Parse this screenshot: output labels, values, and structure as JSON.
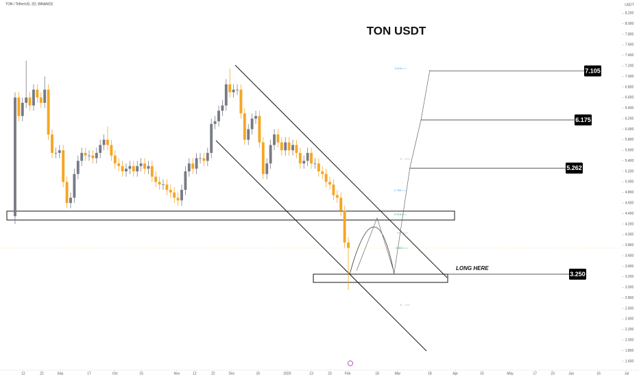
{
  "chart_data": {
    "type": "candlestick",
    "header": "TON / TetherUS, 2D, BINANCE",
    "title": "TON USDT",
    "y_axis_label": "USDT",
    "up_color": "#787b86",
    "down_color": "#f5a623",
    "open": [
      4.35,
      6.6,
      6.25,
      6.5,
      6.6,
      6.45,
      6.75,
      6.6,
      6.5,
      6.75,
      5.9,
      5.55,
      5.55,
      5.6,
      5.0,
      4.6,
      4.7,
      5.15,
      5.4,
      5.55,
      5.5,
      5.5,
      5.45,
      5.55,
      5.7,
      5.8,
      5.7,
      5.5,
      5.35,
      5.3,
      5.2,
      5.25,
      5.3,
      5.2,
      5.3,
      5.35,
      5.25,
      5.3,
      5.1,
      5.0,
      4.95,
      4.95,
      4.85,
      4.8,
      4.7,
      4.65,
      4.85,
      5.2,
      5.35,
      5.25,
      5.45,
      5.45,
      5.4,
      5.55,
      6.1,
      6.15,
      6.35,
      6.45,
      6.85,
      6.7,
      6.75,
      6.75,
      6.3,
      5.8,
      6.0,
      6.2,
      6.25,
      5.75,
      5.15,
      5.35,
      5.7,
      5.9,
      5.75,
      5.6,
      5.75,
      5.6,
      5.7,
      5.55,
      5.35,
      5.4,
      5.55,
      5.35,
      5.35,
      5.2,
      5.15,
      5.0,
      4.95,
      4.75,
      4.7,
      4.45,
      3.85
    ],
    "high": [
      6.7,
      6.7,
      6.6,
      7.3,
      6.7,
      6.85,
      6.85,
      6.7,
      7.0,
      6.85,
      6.0,
      5.65,
      5.7,
      5.7,
      5.1,
      4.8,
      5.25,
      5.5,
      5.65,
      5.65,
      5.6,
      5.6,
      5.65,
      5.8,
      5.9,
      6.05,
      5.8,
      5.6,
      5.45,
      5.4,
      5.35,
      5.4,
      5.4,
      5.4,
      5.45,
      5.45,
      5.4,
      5.4,
      5.2,
      5.1,
      5.05,
      5.05,
      4.95,
      4.9,
      4.8,
      4.95,
      5.3,
      5.45,
      5.45,
      5.55,
      5.55,
      5.55,
      5.65,
      6.2,
      6.25,
      6.45,
      6.55,
      6.95,
      7.15,
      6.85,
      6.85,
      6.85,
      6.4,
      6.1,
      6.3,
      6.35,
      6.35,
      5.85,
      5.45,
      5.8,
      6.0,
      6.0,
      5.85,
      5.85,
      5.85,
      5.8,
      5.8,
      5.65,
      5.5,
      5.65,
      5.65,
      5.45,
      5.45,
      5.3,
      5.25,
      5.1,
      5.05,
      4.85,
      4.8,
      4.55,
      3.95
    ],
    "low": [
      4.2,
      6.15,
      6.15,
      6.4,
      6.35,
      6.35,
      6.5,
      6.4,
      6.4,
      5.8,
      5.45,
      5.45,
      5.45,
      4.9,
      4.5,
      4.5,
      4.6,
      5.05,
      5.3,
      5.4,
      5.4,
      5.35,
      5.35,
      5.45,
      5.6,
      5.6,
      5.4,
      5.25,
      5.2,
      5.1,
      5.1,
      5.15,
      5.1,
      5.1,
      5.2,
      5.15,
      5.15,
      5.0,
      4.9,
      4.85,
      4.85,
      4.75,
      4.7,
      4.6,
      4.55,
      4.55,
      4.75,
      5.1,
      5.15,
      5.15,
      5.35,
      5.3,
      5.3,
      5.45,
      6.0,
      6.05,
      6.25,
      6.35,
      6.6,
      6.6,
      6.65,
      6.2,
      5.7,
      5.7,
      5.9,
      6.1,
      5.65,
      5.05,
      5.05,
      5.25,
      5.6,
      5.65,
      5.5,
      5.5,
      5.5,
      5.5,
      5.45,
      5.25,
      5.25,
      5.3,
      5.25,
      5.25,
      5.1,
      5.05,
      4.9,
      4.85,
      4.65,
      4.6,
      4.35,
      3.75,
      2.95
    ],
    "close": [
      6.6,
      6.25,
      6.5,
      6.6,
      6.45,
      6.75,
      6.6,
      6.5,
      6.75,
      5.9,
      5.55,
      5.55,
      5.6,
      5.0,
      4.6,
      4.7,
      5.15,
      5.4,
      5.55,
      5.5,
      5.5,
      5.45,
      5.55,
      5.7,
      5.8,
      5.7,
      5.5,
      5.35,
      5.3,
      5.2,
      5.25,
      5.3,
      5.2,
      5.3,
      5.35,
      5.25,
      5.3,
      5.1,
      5.0,
      4.95,
      4.95,
      4.85,
      4.8,
      4.7,
      4.65,
      4.85,
      5.2,
      5.35,
      5.25,
      5.45,
      5.45,
      5.4,
      5.55,
      6.1,
      6.15,
      6.35,
      6.45,
      6.85,
      6.7,
      6.75,
      6.75,
      6.3,
      5.8,
      6.0,
      6.2,
      6.25,
      5.75,
      5.15,
      5.35,
      5.7,
      5.9,
      5.75,
      5.6,
      5.75,
      5.6,
      5.7,
      5.55,
      5.35,
      5.4,
      5.55,
      5.35,
      5.35,
      5.2,
      5.15,
      5.0,
      4.95,
      4.75,
      4.7,
      4.45,
      3.85,
      3.75
    ],
    "xlim": [
      -4.07,
      163.5
    ],
    "ylim": [
      1.43,
      8.45
    ],
    "xticks": [
      {
        "value": 2.2,
        "label": "12"
      },
      {
        "value": 7.2,
        "label": "22"
      },
      {
        "value": 12.2,
        "label": "Sep"
      },
      {
        "value": 20,
        "label": "17"
      },
      {
        "value": 27,
        "label": "Oct"
      },
      {
        "value": 34.1,
        "label": "15"
      },
      {
        "value": 43.7,
        "label": "Nov"
      },
      {
        "value": 48.5,
        "label": "12"
      },
      {
        "value": 53.5,
        "label": "22"
      },
      {
        "value": 58.5,
        "label": "Dec"
      },
      {
        "value": 65.6,
        "label": "16"
      },
      {
        "value": 73.5,
        "label": "2025"
      },
      {
        "value": 80,
        "label": "13"
      },
      {
        "value": 85,
        "label": "23"
      },
      {
        "value": 89.8,
        "label": "Feb"
      },
      {
        "value": 97.8,
        "label": "18"
      },
      {
        "value": 103.3,
        "label": "Mar"
      },
      {
        "value": 112,
        "label": "18"
      },
      {
        "value": 118.9,
        "label": "Apr"
      },
      {
        "value": 126.1,
        "label": "15"
      },
      {
        "value": 133.7,
        "label": "May"
      },
      {
        "value": 140.4,
        "label": "17"
      },
      {
        "value": 145.2,
        "label": "23"
      },
      {
        "value": 150.2,
        "label": "Jun"
      },
      {
        "value": 157.6,
        "label": "16"
      },
      {
        "value": 165.2,
        "label": "Jul"
      }
    ],
    "yticks": [
      {
        "value": 1.6,
        "label": "1.600"
      },
      {
        "value": 1.8,
        "label": "1.800"
      },
      {
        "value": 2.0,
        "label": "2.000"
      },
      {
        "value": 2.2,
        "label": "2.200"
      },
      {
        "value": 2.4,
        "label": "2.400"
      },
      {
        "value": 2.6,
        "label": "2.600"
      },
      {
        "value": 2.8,
        "label": "2.800"
      },
      {
        "value": 3.0,
        "label": "3.000"
      },
      {
        "value": 3.2,
        "label": "3.200"
      },
      {
        "value": 3.4,
        "label": "3.400"
      },
      {
        "value": 3.6,
        "label": "3.600"
      },
      {
        "value": 3.8,
        "label": "3.800"
      },
      {
        "value": 4.0,
        "label": "4.000"
      },
      {
        "value": 4.2,
        "label": "4.200"
      },
      {
        "value": 4.4,
        "label": "4.400"
      },
      {
        "value": 4.6,
        "label": "4.600"
      },
      {
        "value": 4.8,
        "label": "4.800"
      },
      {
        "value": 5.0,
        "label": "5.000"
      },
      {
        "value": 5.2,
        "label": "5.200"
      },
      {
        "value": 5.4,
        "label": "5.400"
      },
      {
        "value": 5.6,
        "label": "5.600"
      },
      {
        "value": 5.8,
        "label": "5.800"
      },
      {
        "value": 6.0,
        "label": "6.000"
      },
      {
        "value": 6.2,
        "label": "6.200"
      },
      {
        "value": 6.4,
        "label": "6.400"
      },
      {
        "value": 6.6,
        "label": "6.600"
      },
      {
        "value": 6.8,
        "label": "6.800"
      },
      {
        "value": 7.0,
        "label": "7.000"
      },
      {
        "value": 7.2,
        "label": "7.200"
      },
      {
        "value": 7.4,
        "label": "7.400"
      },
      {
        "value": 7.6,
        "label": "7.600"
      },
      {
        "value": 7.8,
        "label": "7.800"
      },
      {
        "value": 8.0,
        "label": "8.000"
      },
      {
        "value": 8.2,
        "label": "8.200"
      }
    ],
    "targets": [
      {
        "value": 7.105,
        "label": "7.105"
      },
      {
        "value": 6.175,
        "label": "6.175"
      },
      {
        "value": 5.262,
        "label": "5.262"
      },
      {
        "value": 3.25,
        "label": "3.250"
      }
    ],
    "annotation": "LONG HERE",
    "fib_labels": [
      "1.618",
      "1",
      "0.786",
      "0.618",
      "0.5",
      "0.382",
      "0"
    ]
  }
}
